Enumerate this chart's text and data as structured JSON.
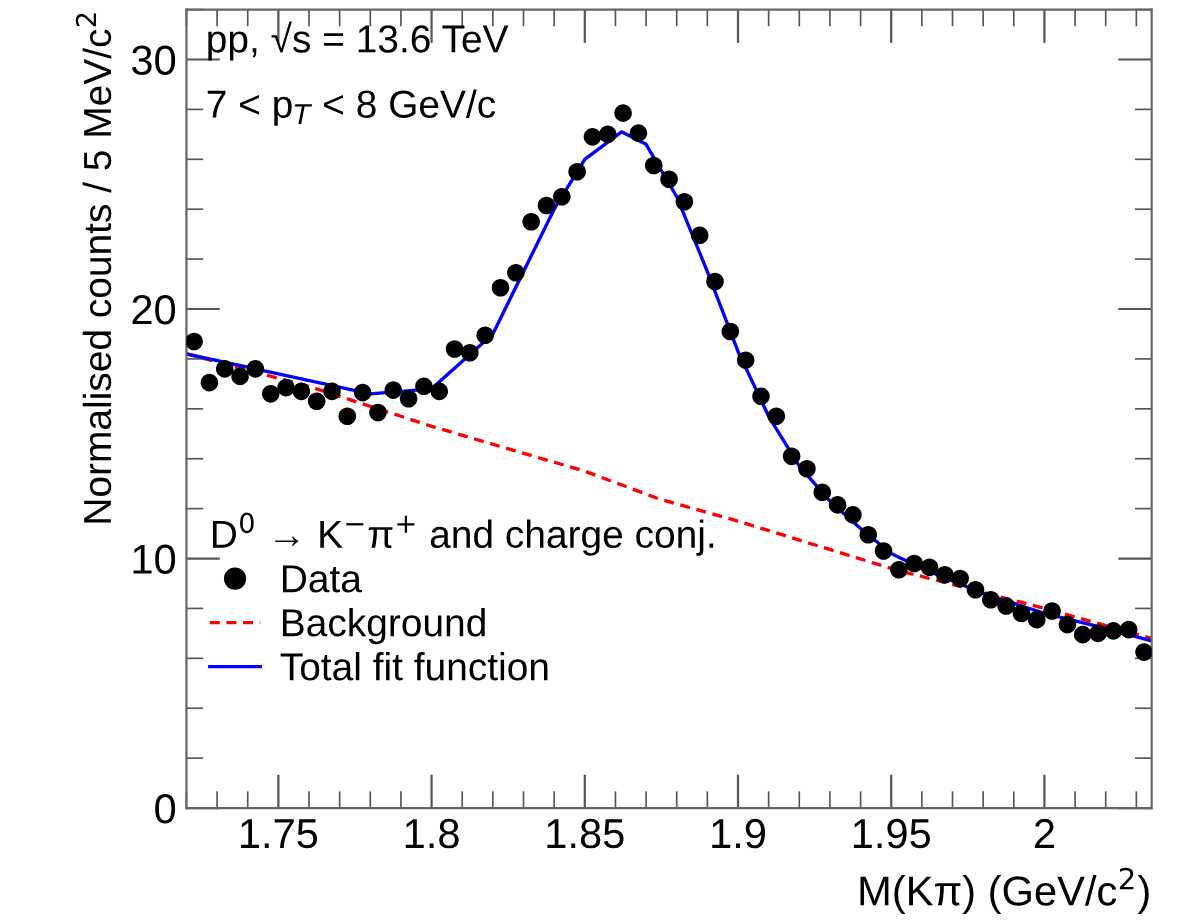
{
  "chart_data": {
    "type": "scatter",
    "xlabel": "M(Kπ) (GeV/c$^{2}$)",
    "ylabel": "Normalised counts / 5 MeV/c$^{2}$",
    "legend_title": "D$^{0}$ → K$^{−}$π$^{+}$ and charge conj.",
    "annotations": [
      "pp, √s = 13.6 TeV",
      "7 < p$_{T}$ < 8 GeV/c"
    ],
    "xlim": [
      1.72,
      2.035
    ],
    "xticks": [
      {
        "value": 1.75,
        "label": "1.75"
      },
      {
        "value": 1.8,
        "label": "1.8"
      },
      {
        "value": 1.85,
        "label": "1.85"
      },
      {
        "value": 1.9,
        "label": "1.9"
      },
      {
        "value": 1.95,
        "label": "1.95"
      },
      {
        "value": 2.0,
        "label": "2"
      }
    ],
    "ylim": [
      0,
      32
    ],
    "yticks": [
      0,
      10,
      20,
      30
    ],
    "grid": false,
    "legend": "left",
    "series": [
      {
        "name": "Data",
        "color": "#000000",
        "marker": "circle",
        "x": [
          1.7225,
          1.7275,
          1.7325,
          1.7375,
          1.7425,
          1.7475,
          1.7525,
          1.7575,
          1.7625,
          1.7675,
          1.7725,
          1.7775,
          1.7825,
          1.7875,
          1.7925,
          1.7975,
          1.8025,
          1.8075,
          1.8125,
          1.8175,
          1.8225,
          1.8275,
          1.8325,
          1.8375,
          1.8425,
          1.8475,
          1.8525,
          1.8575,
          1.8625,
          1.8675,
          1.8725,
          1.8775,
          1.8825,
          1.8875,
          1.8925,
          1.8975,
          1.9025,
          1.9075,
          1.9125,
          1.9175,
          1.9225,
          1.9275,
          1.9325,
          1.9375,
          1.9425,
          1.9475,
          1.9525,
          1.9575,
          1.9625,
          1.9675,
          1.9725,
          1.9775,
          1.9825,
          1.9875,
          1.9925,
          1.9975,
          2.0025,
          2.0075,
          2.0125,
          2.0175,
          2.0225,
          2.0275,
          2.0325
        ],
        "values": [
          18.7,
          17.05,
          17.6,
          17.3,
          17.6,
          16.6,
          16.85,
          16.7,
          16.3,
          16.7,
          15.7,
          16.65,
          15.85,
          16.75,
          16.4,
          16.9,
          16.7,
          18.4,
          18.25,
          18.95,
          20.85,
          21.45,
          23.5,
          24.15,
          24.5,
          25.5,
          26.9,
          27.0,
          27.85,
          27.05,
          25.75,
          25.2,
          24.3,
          22.95,
          21.1,
          19.1,
          17.95,
          16.5,
          15.7,
          14.1,
          13.6,
          12.65,
          12.15,
          11.75,
          10.95,
          10.3,
          9.55,
          9.8,
          9.65,
          9.35,
          9.2,
          8.75,
          8.35,
          8.1,
          7.8,
          7.55,
          7.9,
          7.35,
          6.95,
          7.0,
          7.1,
          7.15,
          6.25
        ]
      },
      {
        "name": "Background",
        "type": "line",
        "color": "#ff0000",
        "line_style": "dashed",
        "x": [
          1.72,
          1.76,
          1.8,
          1.85,
          1.874,
          1.9,
          1.95,
          2.0,
          2.035
        ],
        "values": [
          18.2,
          16.9,
          15.3,
          13.5,
          12.4,
          11.5,
          9.6,
          8.0,
          6.8
        ]
      },
      {
        "name": "Total fit function",
        "type": "line",
        "color": "#0000ff",
        "line_style": "solid",
        "x": [
          1.72,
          1.75,
          1.78,
          1.8,
          1.82,
          1.84,
          1.85,
          1.862,
          1.87,
          1.88,
          1.89,
          1.9,
          1.91,
          1.92,
          1.93,
          1.94,
          1.95,
          1.96,
          1.98,
          2.0,
          2.02,
          2.035
        ],
        "values": [
          18.2,
          17.4,
          16.6,
          16.8,
          19.0,
          24.0,
          26.0,
          27.1,
          26.6,
          24.5,
          21.5,
          18.3,
          15.7,
          13.7,
          12.3,
          11.2,
          10.2,
          9.6,
          8.6,
          7.8,
          7.2,
          6.7
        ]
      }
    ]
  }
}
